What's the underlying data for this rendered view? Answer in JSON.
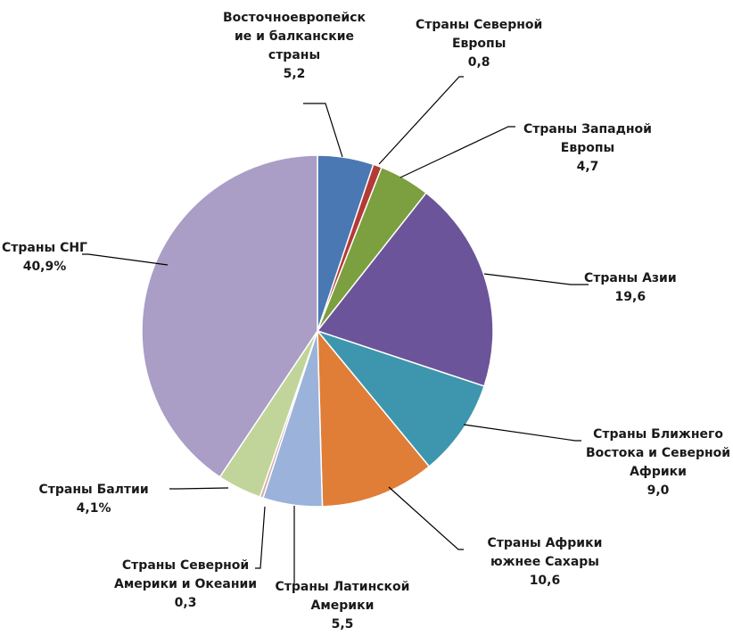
{
  "chart_data": {
    "type": "pie",
    "slices": [
      {
        "label_lines": [
          "Восточноевропейск",
          "ие и балканские",
          "страны"
        ],
        "value_label": "5,2",
        "value": 5.2,
        "color": "#4a78b2"
      },
      {
        "label_lines": [
          "Страны Северной",
          "Европы"
        ],
        "value_label": "0,8",
        "value": 0.8,
        "color": "#b33a36"
      },
      {
        "label_lines": [
          "Страны Западной",
          "Европы"
        ],
        "value_label": "4,7",
        "value": 4.7,
        "color": "#7c9f3f"
      },
      {
        "label_lines": [
          "Страны Азии"
        ],
        "value_label": "19,6",
        "value": 19.6,
        "color": "#6b5499"
      },
      {
        "label_lines": [
          "Страны Ближнего",
          "Востока и Северной",
          "Африки"
        ],
        "value_label": "9,0",
        "value": 9.0,
        "color": "#3d96ad"
      },
      {
        "label_lines": [
          "Страны Африки",
          "южнее Сахары"
        ],
        "value_label": "10,6",
        "value": 10.6,
        "color": "#e07d37"
      },
      {
        "label_lines": [
          "Страны Латинской",
          "Америки"
        ],
        "value_label": "5,5",
        "value": 5.5,
        "color": "#9bb3da"
      },
      {
        "label_lines": [
          "Страны Северной",
          "Америки и Океании"
        ],
        "value_label": "0,3",
        "value": 0.3,
        "color": "#d9a8a6"
      },
      {
        "label_lines": [
          "Страны Балтии"
        ],
        "value_label": "4,1%",
        "value": 4.1,
        "color": "#c1d59a"
      },
      {
        "label_lines": [
          "Страны СНГ"
        ],
        "value_label": "40,9%",
        "value": 40.9,
        "color": "#aa9dc6"
      }
    ]
  }
}
